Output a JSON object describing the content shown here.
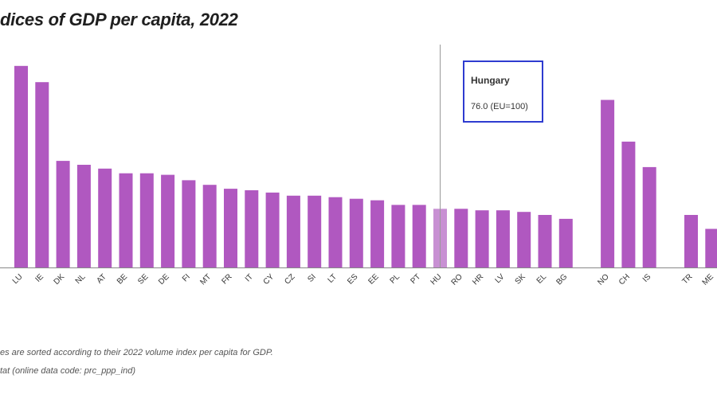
{
  "title": "dices of GDP per capita, 2022",
  "notes": {
    "line1": "es are sorted according to their 2022 volume index per capita for GDP.",
    "line2": "tat (online data code: prc_ppp_ind)"
  },
  "tooltip": {
    "country": "Hungary",
    "value_text": "76.0 (EU=100)"
  },
  "colors": {
    "bar": "#b058c0",
    "bar_highlight": "#c890d3",
    "axis": "#888888",
    "crosshair": "#999999",
    "tooltip_border": "#2e3bd0"
  },
  "chart_data": {
    "type": "bar",
    "title": "dices of GDP per capita, 2022",
    "xlabel": "",
    "ylabel": "",
    "highlight": "HU",
    "ylim": [
      0,
      325
    ],
    "categories": [
      "LU",
      "IE",
      "DK",
      "NL",
      "AT",
      "BE",
      "SE",
      "DE",
      "FI",
      "MT",
      "FR",
      "IT",
      "CY",
      "CZ",
      "SI",
      "LT",
      "ES",
      "EE",
      "PL",
      "PT",
      "HU",
      "RO",
      "HR",
      "LV",
      "SK",
      "EL",
      "BG",
      "NO",
      "CH",
      "IS",
      "TR",
      "ME"
    ],
    "values": [
      261,
      240,
      138,
      133,
      128,
      122,
      122,
      120,
      113,
      107,
      102,
      100,
      97,
      93,
      93,
      91,
      89,
      87,
      81,
      81,
      76,
      76,
      74,
      74,
      72,
      68,
      63,
      217,
      163,
      130,
      68,
      50
    ]
  }
}
